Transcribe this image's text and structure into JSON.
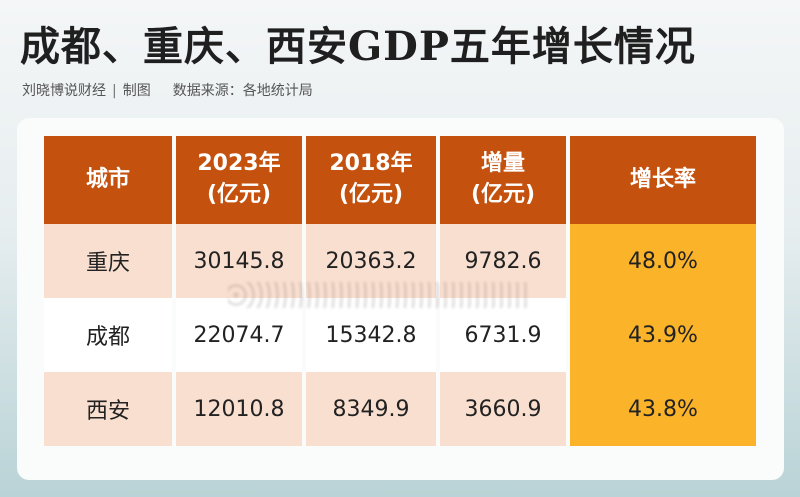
{
  "header": {
    "title": "成都、重庆、西安GDP五年增长情况",
    "credit": "刘晓博说财经",
    "credit_suffix": "制图",
    "source_label": "数据来源：",
    "source": "各地统计局"
  },
  "colors": {
    "header_bg": "#c4510e",
    "highlight": "#fbb42a",
    "row_tint": "#f9dfcf"
  },
  "chart_data": {
    "type": "table",
    "title": "成都、重庆、西安GDP五年增长情况",
    "columns": [
      {
        "name": "城市",
        "unit": ""
      },
      {
        "name": "2023年",
        "unit": "(亿元)"
      },
      {
        "name": "2018年",
        "unit": "(亿元)"
      },
      {
        "name": "增量",
        "unit": "(亿元)"
      },
      {
        "name": "增长率",
        "unit": ""
      }
    ],
    "rows": [
      {
        "city": "重庆",
        "gdp_2023": "30145.8",
        "gdp_2018": "20363.2",
        "increase": "9782.6",
        "growth": "48.0%"
      },
      {
        "city": "成都",
        "gdp_2023": "22074.7",
        "gdp_2018": "15342.8",
        "increase": "6731.9",
        "growth": "43.9%"
      },
      {
        "city": "西安",
        "gdp_2023": "12010.8",
        "gdp_2018": "8349.9",
        "increase": "3660.9",
        "growth": "43.8%"
      }
    ]
  }
}
